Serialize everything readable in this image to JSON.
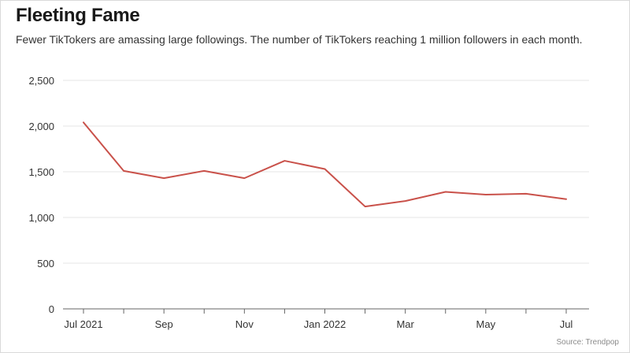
{
  "title": "Fleeting Fame",
  "subtitle": "Fewer TikTokers are amassing large followings. The number of TikTokers reaching 1 million followers in each month.",
  "source": "Source: Trendpop",
  "colors": {
    "line": "#c9514a",
    "grid": "#e6e6e6",
    "axis": "#666666",
    "title": "#1a1a1a"
  },
  "chart_data": {
    "type": "line",
    "title": "Fleeting Fame",
    "xlabel": "",
    "ylabel": "",
    "ylim": [
      0,
      2500
    ],
    "grid": true,
    "x": [
      "Jul 2021",
      "Aug 2021",
      "Sep 2021",
      "Oct 2021",
      "Nov 2021",
      "Dec 2021",
      "Jan 2022",
      "Feb 2022",
      "Mar 2022",
      "Apr 2022",
      "May 2022",
      "Jun 2022",
      "Jul 2022"
    ],
    "series": [
      {
        "values": [
          2040,
          1510,
          1430,
          1510,
          1430,
          1620,
          1530,
          1120,
          1180,
          1280,
          1250,
          1260,
          1200
        ]
      }
    ],
    "y_ticks": [
      "0",
      "500",
      "1,000",
      "1,500",
      "2,000",
      "2,500"
    ],
    "y_tick_values": [
      0,
      500,
      1000,
      1500,
      2000,
      2500
    ],
    "x_tick_labels": [
      "Jul 2021",
      "Sep",
      "Nov",
      "Jan 2022",
      "Mar",
      "May",
      "Jul"
    ],
    "x_tick_index": [
      0,
      2,
      4,
      6,
      8,
      10,
      12
    ]
  }
}
